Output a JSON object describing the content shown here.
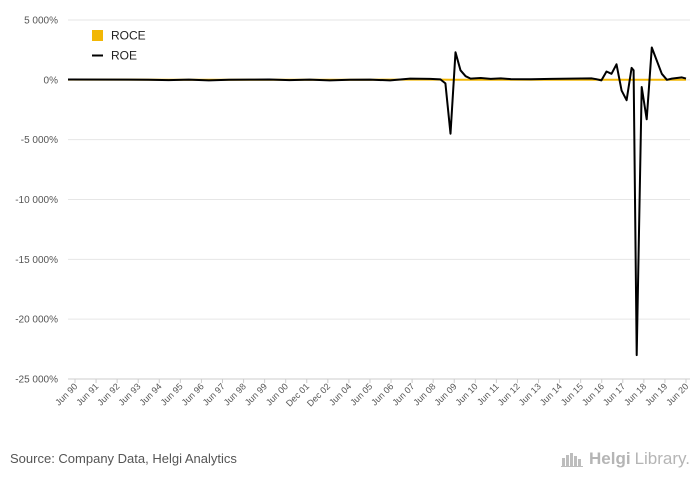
{
  "chart_data": {
    "type": "line",
    "title": "",
    "xlabel": "",
    "ylabel": "",
    "ylim": [
      -25000,
      5000
    ],
    "y_ticks": [
      5000,
      0,
      -5000,
      -10000,
      -15000,
      -20000,
      -25000
    ],
    "y_tick_labels": [
      "5 000%",
      "0%",
      "-5 000%",
      "-10 000%",
      "-15 000%",
      "-20 000%",
      "-25 000%"
    ],
    "x_tick_labels": [
      "Jun 90",
      "Jun 91",
      "Jun 92",
      "Jun 93",
      "Jun 94",
      "Jun 95",
      "Jun 96",
      "Jun 97",
      "Jun 98",
      "Jun 99",
      "Jun 00",
      "Dec 01",
      "Dec 02",
      "Jun 04",
      "Jun 05",
      "Jun 06",
      "Jun 07",
      "Jun 08",
      "Jun 09",
      "Jun 10",
      "Jun 11",
      "Jun 12",
      "Jun 13",
      "Jun 14",
      "Jun 15",
      "Jun 16",
      "Jun 17",
      "Jun 18",
      "Jun 19",
      "Jun 20"
    ],
    "grid": true,
    "legend_position": "top-left",
    "series": [
      {
        "name": "ROCE",
        "color": "#f2b705",
        "x": [
          1990,
          1995,
          2000,
          2005,
          2008.5,
          2009,
          2012,
          2016,
          2017.5,
          2018,
          2019,
          2020.7
        ],
        "values": [
          20,
          15,
          10,
          15,
          20,
          10,
          15,
          10,
          15,
          10,
          15,
          10
        ]
      },
      {
        "name": "ROE",
        "color": "#000000",
        "x": [
          1990,
          1993,
          1994,
          1995,
          1996,
          1997,
          1998,
          1999,
          2000,
          2001,
          2002,
          2003,
          2004,
          2005,
          2006,
          2007,
          2008,
          2008.5,
          2008.75,
          2009,
          2009.25,
          2009.5,
          2009.75,
          2010,
          2010.5,
          2011,
          2011.5,
          2012,
          2013,
          2014,
          2015,
          2016,
          2016.25,
          2016.5,
          2016.75,
          2017,
          2017.25,
          2017.5,
          2017.75,
          2018,
          2018.1,
          2018.25,
          2018.5,
          2018.75,
          2019,
          2019.5,
          2019.75,
          2020,
          2020.5,
          2020.7
        ],
        "values": [
          30,
          20,
          10,
          -20,
          20,
          -50,
          10,
          20,
          30,
          -20,
          20,
          -50,
          10,
          20,
          -50,
          100,
          80,
          40,
          -300,
          -4500,
          2300,
          800,
          300,
          100,
          150,
          80,
          120,
          60,
          50,
          80,
          100,
          120,
          50,
          -50,
          700,
          500,
          1300,
          -900,
          -1700,
          1000,
          800,
          -23000,
          -600,
          -3300,
          2700,
          500,
          0,
          100,
          200,
          100
        ]
      }
    ]
  },
  "footer": {
    "source": "Source: Company Data, Helgi Analytics",
    "brand_prefix": "Helgi",
    "brand_suffix": "Library."
  }
}
